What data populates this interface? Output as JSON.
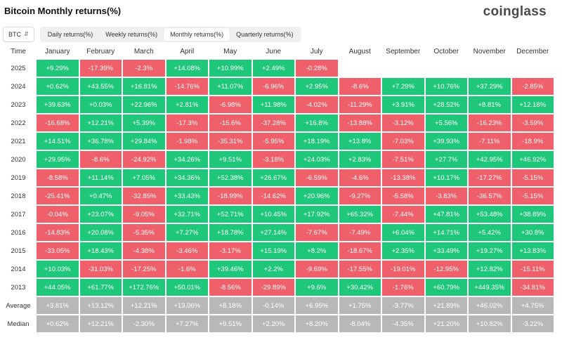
{
  "header": {
    "title": "Bitcoin Monthly returns(%)",
    "brand": "coinglass"
  },
  "toolbar": {
    "symbol": "BTC",
    "tabs": [
      "Daily returns(%)",
      "Weekly returns(%)",
      "Monthly returns(%)",
      "Quarterly returns(%)"
    ],
    "active_tab": 2
  },
  "colors": {
    "positive": "#1fc77a",
    "negative": "#f0606a",
    "summary": "#b8b8b8"
  },
  "table": {
    "corner_label": "Time",
    "columns": [
      "January",
      "February",
      "March",
      "April",
      "May",
      "June",
      "July",
      "August",
      "September",
      "October",
      "November",
      "December"
    ],
    "rows": [
      {
        "label": "2025",
        "cells": [
          "+9.29%",
          "-17.39%",
          "-2.3%",
          "+14.08%",
          "+10.99%",
          "+2.49%",
          "-0.28%",
          "",
          "",
          "",
          "",
          ""
        ]
      },
      {
        "label": "2024",
        "cells": [
          "+0.62%",
          "+43.55%",
          "+16.81%",
          "-14.76%",
          "+11.07%",
          "-6.96%",
          "+2.95%",
          "-8.6%",
          "+7.29%",
          "+10.76%",
          "+37.29%",
          "-2.85%"
        ]
      },
      {
        "label": "2023",
        "cells": [
          "+39.63%",
          "+0.03%",
          "+22.96%",
          "+2.81%",
          "-6.98%",
          "+11.98%",
          "-4.02%",
          "-11.29%",
          "+3.91%",
          "+28.52%",
          "+8.81%",
          "+12.18%"
        ]
      },
      {
        "label": "2022",
        "cells": [
          "-16.68%",
          "+12.21%",
          "+5.39%",
          "-17.3%",
          "-15.6%",
          "-37.28%",
          "+16.8%",
          "-13.88%",
          "-3.12%",
          "+5.56%",
          "-16.23%",
          "-3.59%"
        ]
      },
      {
        "label": "2021",
        "cells": [
          "+14.51%",
          "+36.78%",
          "+29.84%",
          "-1.98%",
          "-35.31%",
          "-5.95%",
          "+18.19%",
          "+13.8%",
          "-7.03%",
          "+39.93%",
          "-7.11%",
          "-18.9%"
        ]
      },
      {
        "label": "2020",
        "cells": [
          "+29.95%",
          "-8.6%",
          "-24.92%",
          "+34.26%",
          "+9.51%",
          "-3.18%",
          "+24.03%",
          "+2.83%",
          "-7.51%",
          "+27.7%",
          "+42.95%",
          "+46.92%"
        ]
      },
      {
        "label": "2019",
        "cells": [
          "-8.58%",
          "+11.14%",
          "+7.05%",
          "+34.36%",
          "+52.38%",
          "+26.67%",
          "-6.59%",
          "-4.6%",
          "-13.38%",
          "+10.17%",
          "-17.27%",
          "-5.15%"
        ]
      },
      {
        "label": "2018",
        "cells": [
          "-25.41%",
          "+0.47%",
          "-32.85%",
          "+33.43%",
          "-18.99%",
          "-14.62%",
          "+20.96%",
          "-9.27%",
          "-5.58%",
          "-3.83%",
          "-36.57%",
          "-5.15%"
        ]
      },
      {
        "label": "2017",
        "cells": [
          "-0.04%",
          "+23.07%",
          "-9.05%",
          "+32.71%",
          "+52.71%",
          "+10.45%",
          "+17.92%",
          "+65.32%",
          "-7.44%",
          "+47.81%",
          "+53.48%",
          "+38.89%"
        ]
      },
      {
        "label": "2016",
        "cells": [
          "-14.83%",
          "+20.08%",
          "-5.35%",
          "+7.27%",
          "+18.78%",
          "+27.14%",
          "-7.67%",
          "-7.49%",
          "+6.04%",
          "+14.71%",
          "+5.42%",
          "+30.8%"
        ]
      },
      {
        "label": "2015",
        "cells": [
          "-33.05%",
          "+18.43%",
          "-4.38%",
          "-3.46%",
          "-3.17%",
          "+15.19%",
          "+8.2%",
          "-18.67%",
          "+2.35%",
          "+33.49%",
          "+19.27%",
          "+13.83%"
        ]
      },
      {
        "label": "2014",
        "cells": [
          "+10.03%",
          "-31.03%",
          "-17.25%",
          "-1.6%",
          "+39.46%",
          "+2.2%",
          "-9.69%",
          "-17.55%",
          "-19.01%",
          "-12.95%",
          "+12.82%",
          "-15.11%"
        ]
      },
      {
        "label": "2013",
        "cells": [
          "+44.05%",
          "+61.77%",
          "+172.76%",
          "+50.01%",
          "-8.56%",
          "-29.89%",
          "+9.6%",
          "+30.42%",
          "-1.76%",
          "+60.79%",
          "+449.35%",
          "-34.81%"
        ]
      }
    ],
    "summary_rows": [
      {
        "label": "Average",
        "cells": [
          "+3.81%",
          "+13.12%",
          "+12.21%",
          "+13.06%",
          "+8.18%",
          "-0.14%",
          "+6.95%",
          "+1.75%",
          "-3.77%",
          "+21.89%",
          "+46.02%",
          "+4.75%"
        ]
      },
      {
        "label": "Median",
        "cells": [
          "+0.62%",
          "+12.21%",
          "-2.30%",
          "+7.27%",
          "+9.51%",
          "+2.20%",
          "+8.20%",
          "-8.04%",
          "-4.35%",
          "+21.20%",
          "+10.82%",
          "-3.22%"
        ]
      }
    ]
  }
}
